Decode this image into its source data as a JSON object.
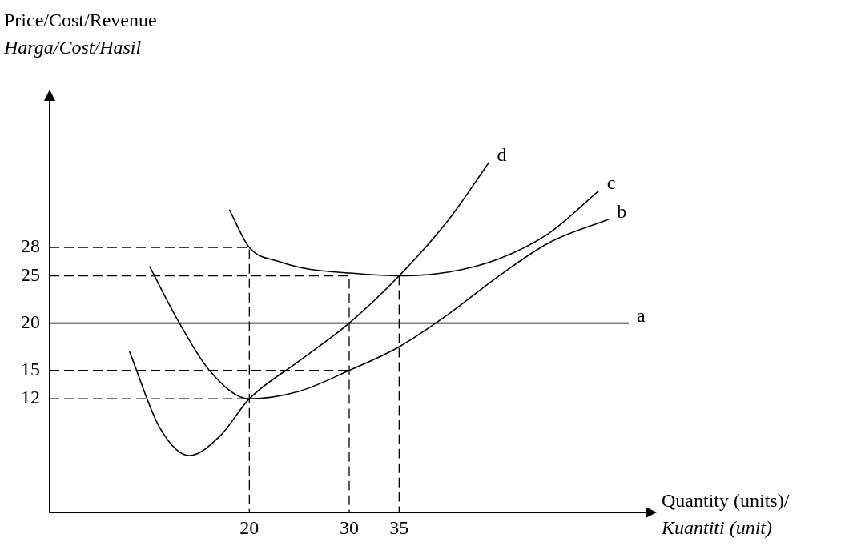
{
  "chart_data": {
    "type": "line",
    "ylabel": "Price/Cost/Revenue\nHarga/Cost/Hasil",
    "xlabel": "Quantity (units)/\nKuantiti (unit)",
    "xlim": [
      0,
      60
    ],
    "ylim": [
      0,
      44
    ],
    "xticks": [
      20,
      30,
      35
    ],
    "yticks": [
      12,
      15,
      20,
      25,
      28
    ],
    "grid": false,
    "legend": false,
    "marker": "none",
    "line_style": "solid",
    "series": [
      {
        "color": "#000000",
        "x": [
          0,
          58
        ],
        "values": [
          20,
          20
        ]
      },
      {
        "color": "#000000",
        "x": [
          10,
          13,
          16,
          20,
          25,
          30,
          35,
          40,
          45,
          50,
          56
        ],
        "values": [
          26,
          20,
          15,
          12,
          12.8,
          15,
          17.5,
          21,
          25,
          28.5,
          31
        ]
      },
      {
        "color": "#000000",
        "x": [
          18,
          20,
          23,
          26,
          30,
          35,
          40,
          45,
          50,
          55
        ],
        "values": [
          32,
          28,
          26.5,
          25.7,
          25.3,
          25,
          25.4,
          26.8,
          29.5,
          34
        ]
      },
      {
        "color": "#000000",
        "x": [
          8,
          11,
          14,
          17,
          20,
          25,
          30,
          35,
          40,
          44
        ],
        "values": [
          17,
          9,
          6,
          8,
          12,
          16,
          20,
          25,
          31,
          37
        ]
      },
      {
        "color": "#000000",
        "line_style": "dashed",
        "x": [
          0,
          20,
          20
        ],
        "values": [
          28,
          28,
          0
        ]
      },
      {
        "color": "#000000",
        "line_style": "dashed",
        "x": [
          0,
          30,
          30
        ],
        "values": [
          25,
          25,
          0
        ]
      },
      {
        "color": "#000000",
        "line_style": "dashed",
        "x": [
          35,
          35
        ],
        "values": [
          25,
          0
        ]
      },
      {
        "color": "#000000",
        "line_style": "dashed",
        "x": [
          0,
          30
        ],
        "values": [
          15,
          15
        ]
      },
      {
        "color": "#000000",
        "line_style": "dashed",
        "x": [
          0,
          20
        ],
        "values": [
          12,
          12
        ]
      }
    ],
    "annotations": [
      {
        "text": "a",
        "x": 58,
        "y": 20
      },
      {
        "text": "b",
        "x": 56,
        "y": 31
      },
      {
        "text": "c",
        "x": 55,
        "y": 34
      },
      {
        "text": "d",
        "x": 44,
        "y": 37
      }
    ]
  }
}
